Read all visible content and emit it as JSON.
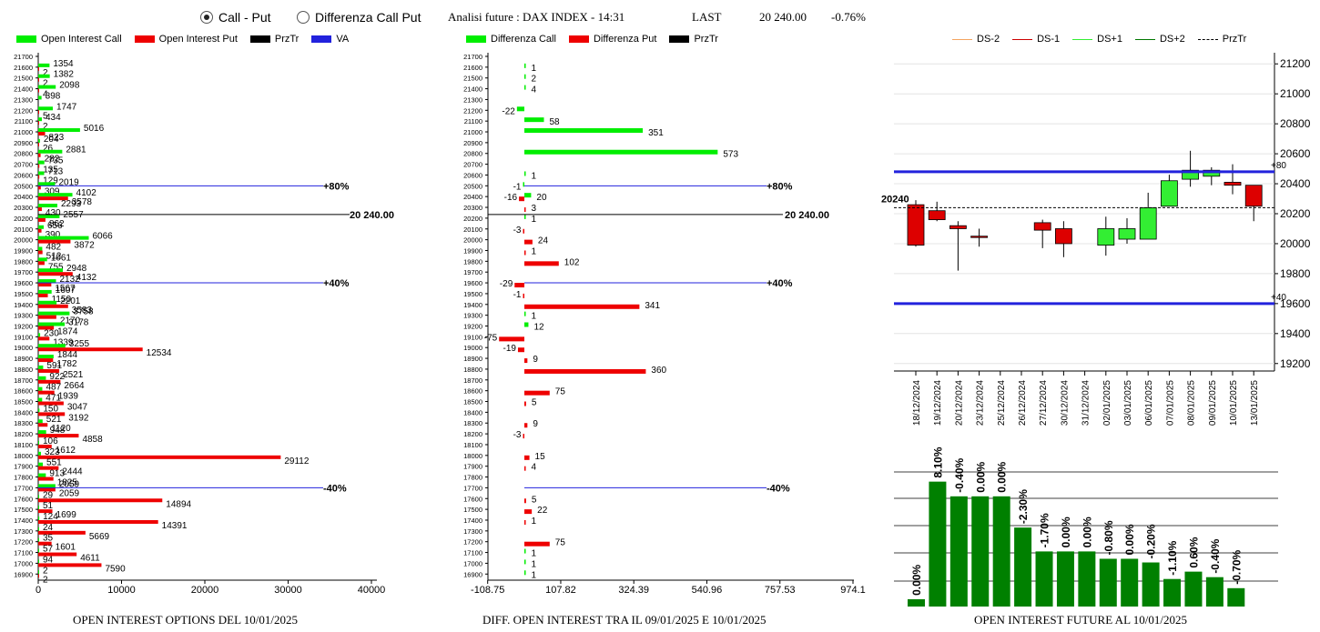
{
  "controls": {
    "call_put": "Call - Put",
    "diff_call_put": "Differenza Call Put",
    "title": "Analisi future : DAX INDEX - 14:31",
    "last_label": "LAST",
    "last_value": "20 240.00",
    "last_change": "-0.76%"
  },
  "legend1": [
    "Open Interest Call",
    "Open Interest Put",
    "PrzTr",
    "VA"
  ],
  "legend2": [
    "Differenza Call",
    "Differenza Put",
    "PrzTr"
  ],
  "legend3": [
    "DS-2",
    "DS-1",
    "DS+1",
    "DS+2",
    "PrzTr"
  ],
  "colors": {
    "call": "#00ee00",
    "put": "#ee0000",
    "va": "#2222dd",
    "dark_green": "#008000",
    "ds_m2": "#f4a460",
    "ds_m1": "#cc0000",
    "ds_p1": "#33ee33",
    "ds_p2": "#007700"
  },
  "captions": {
    "c1": "OPEN INTEREST OPTIONS DEL 10/01/2025",
    "c2": "DIFF. OPEN INTEREST TRA IL 09/01/2025 E 10/01/2025",
    "c3": "OPEN INTEREST FUTURE AL 10/01/2025"
  },
  "chart_data": [
    {
      "type": "bar",
      "orientation": "horizontal",
      "categories": [
        "21700",
        "21600",
        "21500",
        "21400",
        "21300",
        "21200",
        "21100",
        "21000",
        "20900",
        "20800",
        "20700",
        "20600",
        "20500",
        "20400",
        "20300",
        "20200",
        "20100",
        "20000",
        "19900",
        "19800",
        "19700",
        "19600",
        "19500",
        "19400",
        "19300",
        "19200",
        "19100",
        "19000",
        "18900",
        "18800",
        "18700",
        "18600",
        "18500",
        "18400",
        "18300",
        "18200",
        "18100",
        "18000",
        "17900",
        "17800",
        "17700",
        "17600",
        "17500",
        "17400",
        "17300",
        "17200",
        "17100",
        "17000",
        "16900"
      ],
      "series": [
        {
          "name": "Open Interest Call",
          "values": [
            0,
            1354,
            1382,
            2098,
            398,
            1747,
            434,
            5016,
            204,
            2881,
            735,
            713,
            2019,
            4102,
            2293,
            2557,
            656,
            6066,
            482,
            1061,
            2948,
            2132,
            1607,
            2201,
            3758,
            3178,
            230,
            3255,
            1844,
            591,
            922,
            487,
            471,
            150,
            521,
            948,
            106,
            323,
            551,
            913,
            2059,
            29,
            51,
            124,
            24,
            35,
            57,
            94,
            2
          ]
        },
        {
          "name": "Open Interest Put",
          "values": [
            0,
            2,
            2,
            4,
            0,
            5,
            2,
            823,
            26,
            282,
            135,
            129,
            309,
            3578,
            430,
            862,
            390,
            3872,
            512,
            755,
            4132,
            1567,
            1150,
            3583,
            2170,
            1874,
            1339,
            12534,
            1782,
            2521,
            2664,
            1939,
            3047,
            3192,
            1120,
            4858,
            1612,
            29112,
            2444,
            1825,
            2059,
            14894,
            1699,
            14391,
            5669,
            1601,
            4611,
            7590,
            2
          ]
        }
      ],
      "price_line": {
        "category": "20200",
        "label": "20 240.00"
      },
      "va_lines": [
        {
          "category": "20500",
          "label": "+80%"
        },
        {
          "category": "19600",
          "label": "+40%"
        },
        {
          "category": "17700",
          "label": "-40%"
        }
      ],
      "xticks": [
        "0",
        "10000",
        "20000",
        "30000",
        "40000"
      ],
      "xlim": [
        0,
        40000
      ]
    },
    {
      "type": "bar",
      "orientation": "horizontal",
      "categories": [
        "21700",
        "21600",
        "21500",
        "21400",
        "21300",
        "21200",
        "21100",
        "21000",
        "20900",
        "20800",
        "20700",
        "20600",
        "20500",
        "20400",
        "20300",
        "20200",
        "20100",
        "20000",
        "19900",
        "19800",
        "19700",
        "19600",
        "19500",
        "19400",
        "19300",
        "19200",
        "19100",
        "19000",
        "18900",
        "18800",
        "18700",
        "18600",
        "18500",
        "18400",
        "18300",
        "18200",
        "18100",
        "18000",
        "17900",
        "17800",
        "17700",
        "17600",
        "17500",
        "17400",
        "17300",
        "17200",
        "17100",
        "17000",
        "16900"
      ],
      "series": [
        {
          "name": "Differenza Call",
          "values": [
            null,
            1,
            2,
            4,
            null,
            -22,
            58,
            351,
            null,
            573,
            null,
            1,
            -1,
            20,
            null,
            1,
            null,
            null,
            null,
            null,
            null,
            null,
            null,
            null,
            1,
            12,
            null,
            null,
            null,
            null,
            null,
            null,
            null,
            null,
            null,
            null,
            null,
            null,
            null,
            null,
            null,
            null,
            null,
            null,
            null,
            null,
            1,
            1,
            1
          ]
        },
        {
          "name": "Differenza Put",
          "values": [
            null,
            null,
            null,
            null,
            null,
            null,
            null,
            null,
            null,
            null,
            null,
            null,
            null,
            -16,
            3,
            null,
            -3,
            24,
            1,
            102,
            null,
            -29,
            -1,
            341,
            null,
            null,
            -75,
            -19,
            9,
            360,
            null,
            75,
            5,
            null,
            9,
            -3,
            null,
            15,
            4,
            null,
            null,
            5,
            22,
            1,
            null,
            75,
            null,
            null,
            null
          ]
        }
      ],
      "price_line": {
        "category": "20200",
        "label": "20 240.00"
      },
      "va_lines": [
        {
          "category": "20500",
          "label": "+80%"
        },
        {
          "category": "19600",
          "label": "+40%"
        },
        {
          "category": "17700",
          "label": "-40%"
        }
      ],
      "xticks": [
        "-108.75",
        "107.82",
        "324.39",
        "540.96",
        "757.53",
        "974.1"
      ],
      "xlim": [
        -108.75,
        974.1
      ]
    },
    {
      "type": "candlestick",
      "categories": [
        "18/12/2024",
        "19/12/2024",
        "20/12/2024",
        "23/12/2024",
        "25/12/2024",
        "26/12/2024",
        "27/12/2024",
        "30/12/2024",
        "31/12/2024",
        "02/01/2025",
        "03/01/2025",
        "06/01/2025",
        "07/01/2025",
        "08/01/2025",
        "09/01/2025",
        "10/01/2025",
        "13/01/2025"
      ],
      "ohlc": [
        [
          20260,
          20290,
          19980,
          19990
        ],
        [
          20220,
          20280,
          20150,
          20160
        ],
        [
          20120,
          20150,
          19820,
          20100
        ],
        [
          20050,
          20100,
          19980,
          20050
        ],
        null,
        null,
        [
          20140,
          20160,
          19970,
          20090
        ],
        [
          20100,
          20150,
          19910,
          20000
        ],
        null,
        [
          19990,
          20180,
          19920,
          20100
        ],
        [
          20030,
          20170,
          20000,
          20100
        ],
        [
          20030,
          20340,
          20030,
          20240
        ],
        [
          20250,
          20460,
          20250,
          20420
        ],
        [
          20430,
          20620,
          20380,
          20490
        ],
        [
          20450,
          20510,
          20390,
          20490
        ],
        [
          20410,
          20530,
          20330,
          20390
        ],
        [
          20390,
          20390,
          20150,
          20250
        ]
      ],
      "yticks": [
        "19200",
        "19400",
        "19600",
        "19800",
        "20000",
        "20200",
        "20400",
        "20600",
        "20800",
        "21000",
        "21200"
      ],
      "ylim": [
        19150,
        21250
      ],
      "hlines": [
        {
          "value": 20480,
          "label": "+80"
        },
        {
          "value": 19600,
          "label": "+40"
        }
      ],
      "price_line": {
        "value": 20240,
        "label": "20240"
      }
    },
    {
      "type": "bar",
      "values": [
        4,
        68,
        60,
        60,
        60,
        43,
        30,
        30,
        30,
        26,
        26,
        24,
        15,
        19,
        16,
        10
      ],
      "labels": [
        "0.00%",
        "8.10%",
        "-0.40%",
        "0.00%",
        "0.00%",
        "-2.30%",
        "-1.70%",
        "0.00%",
        "0.00%",
        "-0.80%",
        "0.00%",
        "-0.20%",
        "-1.10%",
        "0.60%",
        "-0.40%",
        "-0.70%"
      ]
    }
  ]
}
